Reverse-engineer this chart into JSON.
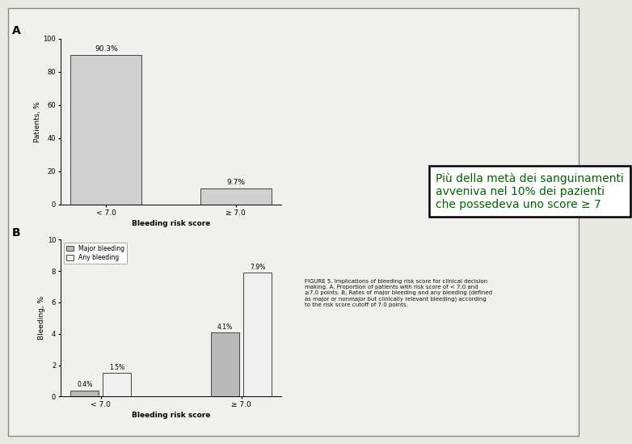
{
  "panel_A": {
    "categories": [
      "< 7.0",
      "≥ 7.0"
    ],
    "values": [
      90.3,
      9.7
    ],
    "bar_color": "#d0d0d0",
    "bar_edge_color": "#444444",
    "ylabel": "Patients, %",
    "xlabel": "Bleeding risk score",
    "ylim": [
      0,
      100
    ],
    "yticks": [
      0,
      20,
      40,
      60,
      80,
      100
    ],
    "labels": [
      "90.3%",
      "9.7%"
    ],
    "panel_label": "A"
  },
  "panel_B": {
    "categories": [
      "< 7.0",
      "≥ 7.0"
    ],
    "major_bleeding": [
      0.4,
      4.1
    ],
    "any_bleeding": [
      1.5,
      7.9
    ],
    "major_color": "#b8b8b8",
    "any_color": "#efefef",
    "bar_edge_color": "#444444",
    "ylabel": "Bleeding, %",
    "xlabel": "Bleeding risk score",
    "ylim": [
      0,
      10
    ],
    "yticks": [
      0,
      2,
      4,
      6,
      8,
      10
    ],
    "major_label": "Major bleeding",
    "any_label": "Any bleeding",
    "labels_major": [
      "0.4%",
      "4.1%"
    ],
    "labels_any": [
      "1.5%",
      "7.9%"
    ],
    "panel_label": "B"
  },
  "text_box": {
    "text": "Più della metà dei sanguinamenti\navveniva nel 10% dei pazienti\nche possedeva uno score ≥ 7",
    "text_color": "#006400",
    "box_edge_color": "#000000",
    "box_face_color": "#ffffff"
  },
  "caption": "FIGURE 5. Implications of bleeding risk score for clinical decision\nmaking. A, Proportion of patients with risk score of < 7.0 and\n≥7.0 points. B, Rates of major bleeding and any bleeding (defined\nas major or nonmajor but clinically relevant bleeding) according\nto the risk score cutoff of 7.0 points.",
  "fig_background": "#e8e8e0",
  "inner_background": "#f0f0ec"
}
